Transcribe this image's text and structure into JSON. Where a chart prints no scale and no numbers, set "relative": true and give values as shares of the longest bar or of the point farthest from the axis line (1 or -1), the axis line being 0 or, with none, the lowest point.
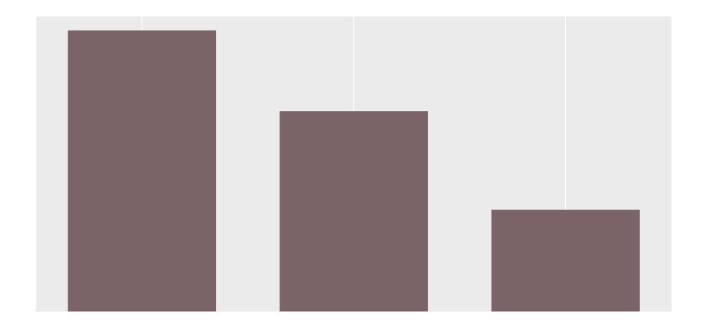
{
  "chart_data": {
    "type": "bar",
    "relative": true,
    "categories": [
      null,
      null,
      null
    ],
    "values": [
      1,
      0.713,
      0.362
    ],
    "color": "#7a6468",
    "grid": true
  }
}
